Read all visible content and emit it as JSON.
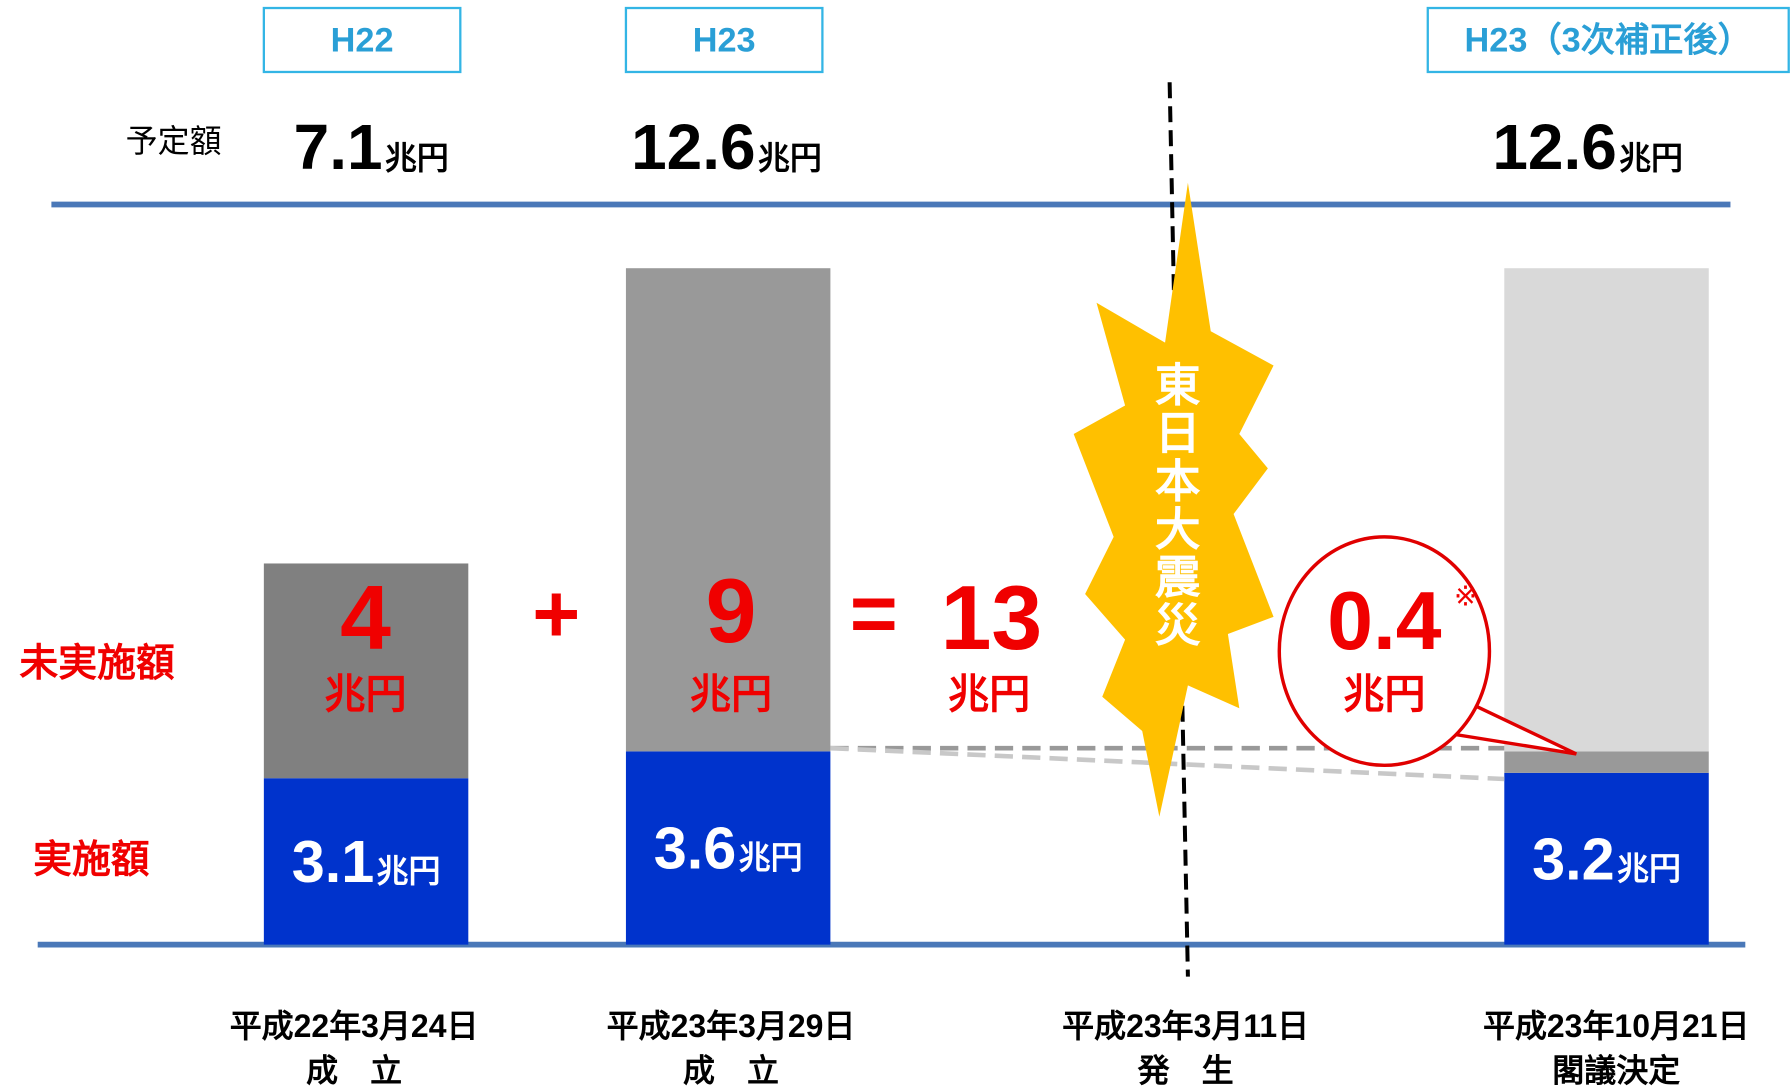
{
  "chart_data": {
    "type": "bar",
    "categories": [
      "H22",
      "H23",
      "H23（3次補正後）"
    ],
    "planned_label": "予定額",
    "planned": [
      7.1,
      12.6,
      12.6
    ],
    "unit": "兆円",
    "series": [
      {
        "name": "実施額",
        "color": "#0033cc",
        "values": [
          3.1,
          3.6,
          3.2
        ]
      },
      {
        "name": "未実施額",
        "color": [
          "#808080",
          "#999999",
          "#999999"
        ],
        "values": [
          4,
          9,
          0.4
        ]
      },
      {
        "color": "#d9d9d9",
        "values": [
          null,
          null,
          9
        ]
      }
    ],
    "operators": [
      "+",
      "="
    ],
    "total": 13,
    "footnote_mark": "※",
    "dates": [
      [
        "平成22年3月24日",
        "成　立"
      ],
      [
        "平成23年3月29日",
        "成　立"
      ],
      [
        "平成23年10月21日",
        "閣議決定"
      ]
    ],
    "event": {
      "label": "東日本大震災",
      "date": "平成23年3月11日",
      "note": "発　生"
    }
  }
}
